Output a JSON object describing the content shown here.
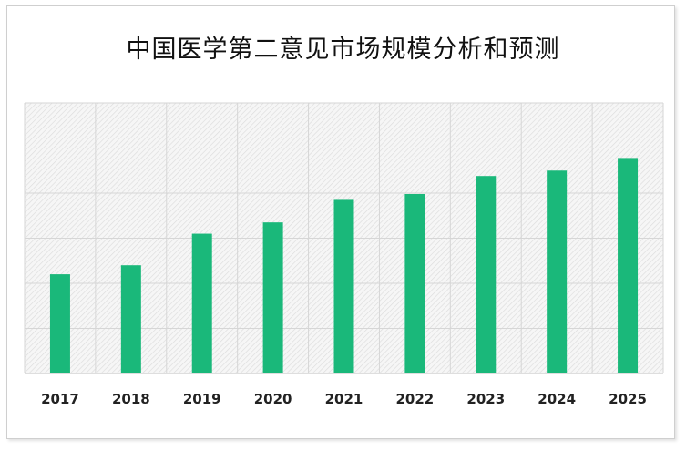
{
  "chart_data": {
    "type": "bar",
    "title": "中国医学第二意见市场规模分析和预测",
    "xlabel": "",
    "ylabel": "",
    "categories": [
      "2017",
      "2018",
      "2019",
      "2020",
      "2021",
      "2022",
      "2023",
      "2024",
      "2025"
    ],
    "values": [
      2.2,
      2.4,
      3.1,
      3.35,
      3.85,
      3.98,
      4.38,
      4.5,
      4.78
    ],
    "ylim": [
      0,
      6
    ],
    "grid": true,
    "legend": "none",
    "bar_color": "#1ab87a",
    "background": "hatched"
  }
}
